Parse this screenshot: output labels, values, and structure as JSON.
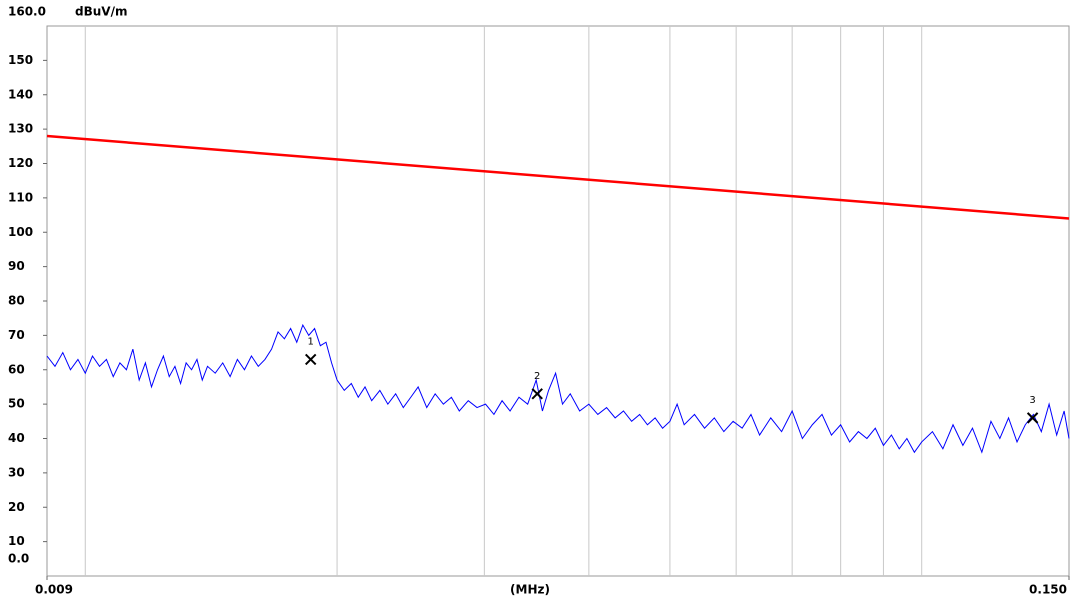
{
  "chart_data": {
    "type": "line",
    "xscale": "log",
    "unit": "dBuV/m",
    "xlabel": "(MHz)",
    "xlim": [
      0.009,
      0.15
    ],
    "ylim": [
      0,
      160
    ],
    "xticks": [
      {
        "value": 0.009,
        "label": "0.009"
      },
      {
        "value": 0.15,
        "label": "0.150"
      }
    ],
    "xgrid": [
      0.01,
      0.02,
      0.03,
      0.04,
      0.05,
      0.06,
      0.07,
      0.08,
      0.09,
      0.1
    ],
    "yticks": [
      {
        "value": 0,
        "label": "0.0"
      },
      10,
      20,
      30,
      40,
      50,
      60,
      70,
      80,
      90,
      100,
      110,
      120,
      130,
      140,
      150,
      {
        "value": 160,
        "label": "160.0"
      }
    ],
    "grid": true,
    "series": [
      {
        "color": "#0000ff",
        "x": [
          0.009,
          0.0092,
          0.0094,
          0.0096,
          0.0098,
          0.01,
          0.0102,
          0.0104,
          0.0106,
          0.0108,
          0.011,
          0.0112,
          0.0114,
          0.0116,
          0.0118,
          0.012,
          0.0122,
          0.0124,
          0.0126,
          0.0128,
          0.013,
          0.0132,
          0.0134,
          0.0136,
          0.0138,
          0.014,
          0.0143,
          0.0146,
          0.0149,
          0.0152,
          0.0155,
          0.0158,
          0.0161,
          0.0164,
          0.0167,
          0.017,
          0.0173,
          0.0176,
          0.0179,
          0.0182,
          0.0185,
          0.0188,
          0.0191,
          0.0194,
          0.0197,
          0.02,
          0.0204,
          0.0208,
          0.0212,
          0.0216,
          0.022,
          0.0225,
          0.023,
          0.0235,
          0.024,
          0.0245,
          0.025,
          0.0256,
          0.0262,
          0.0268,
          0.0274,
          0.028,
          0.0287,
          0.0294,
          0.0301,
          0.0308,
          0.0315,
          0.0322,
          0.033,
          0.0338,
          0.0346,
          0.0352,
          0.0358,
          0.0365,
          0.0372,
          0.038,
          0.039,
          0.04,
          0.041,
          0.042,
          0.043,
          0.044,
          0.045,
          0.046,
          0.047,
          0.048,
          0.049,
          0.05,
          0.051,
          0.052,
          0.0535,
          0.055,
          0.0565,
          0.058,
          0.0595,
          0.061,
          0.0625,
          0.064,
          0.066,
          0.068,
          0.07,
          0.072,
          0.074,
          0.076,
          0.078,
          0.08,
          0.082,
          0.084,
          0.086,
          0.088,
          0.09,
          0.092,
          0.094,
          0.096,
          0.098,
          0.1,
          0.103,
          0.106,
          0.109,
          0.112,
          0.115,
          0.118,
          0.121,
          0.124,
          0.127,
          0.13,
          0.133,
          0.136,
          0.139,
          0.142,
          0.145,
          0.148,
          0.15
        ],
        "values": [
          64,
          61,
          65,
          60,
          63,
          59,
          64,
          61,
          63,
          58,
          62,
          60,
          66,
          57,
          62,
          55,
          60,
          64,
          58,
          61,
          56,
          62,
          60,
          63,
          57,
          61,
          59,
          62,
          58,
          63,
          60,
          64,
          61,
          63,
          66,
          71,
          69,
          72,
          68,
          73,
          70,
          72,
          67,
          68,
          62,
          57,
          54,
          56,
          52,
          55,
          51,
          54,
          50,
          53,
          49,
          52,
          55,
          49,
          53,
          50,
          52,
          48,
          51,
          49,
          50,
          47,
          51,
          48,
          52,
          50,
          57,
          48,
          54,
          59,
          50,
          53,
          48,
          50,
          47,
          49,
          46,
          48,
          45,
          47,
          44,
          46,
          43,
          45,
          50,
          44,
          47,
          43,
          46,
          42,
          45,
          43,
          47,
          41,
          46,
          42,
          48,
          40,
          44,
          47,
          41,
          44,
          39,
          42,
          40,
          43,
          38,
          41,
          37,
          40,
          36,
          39,
          42,
          37,
          44,
          38,
          43,
          36,
          45,
          40,
          46,
          39,
          44,
          47,
          42,
          50,
          41,
          48,
          40
        ]
      },
      {
        "color": "#ff0000",
        "x": [
          0.009,
          0.15
        ],
        "values": [
          128,
          104
        ]
      }
    ],
    "markers": [
      {
        "label": "1",
        "x": 0.0186,
        "value": 63
      },
      {
        "label": "2",
        "x": 0.0347,
        "value": 53
      },
      {
        "label": "3",
        "x": 0.1357,
        "value": 46
      }
    ]
  }
}
